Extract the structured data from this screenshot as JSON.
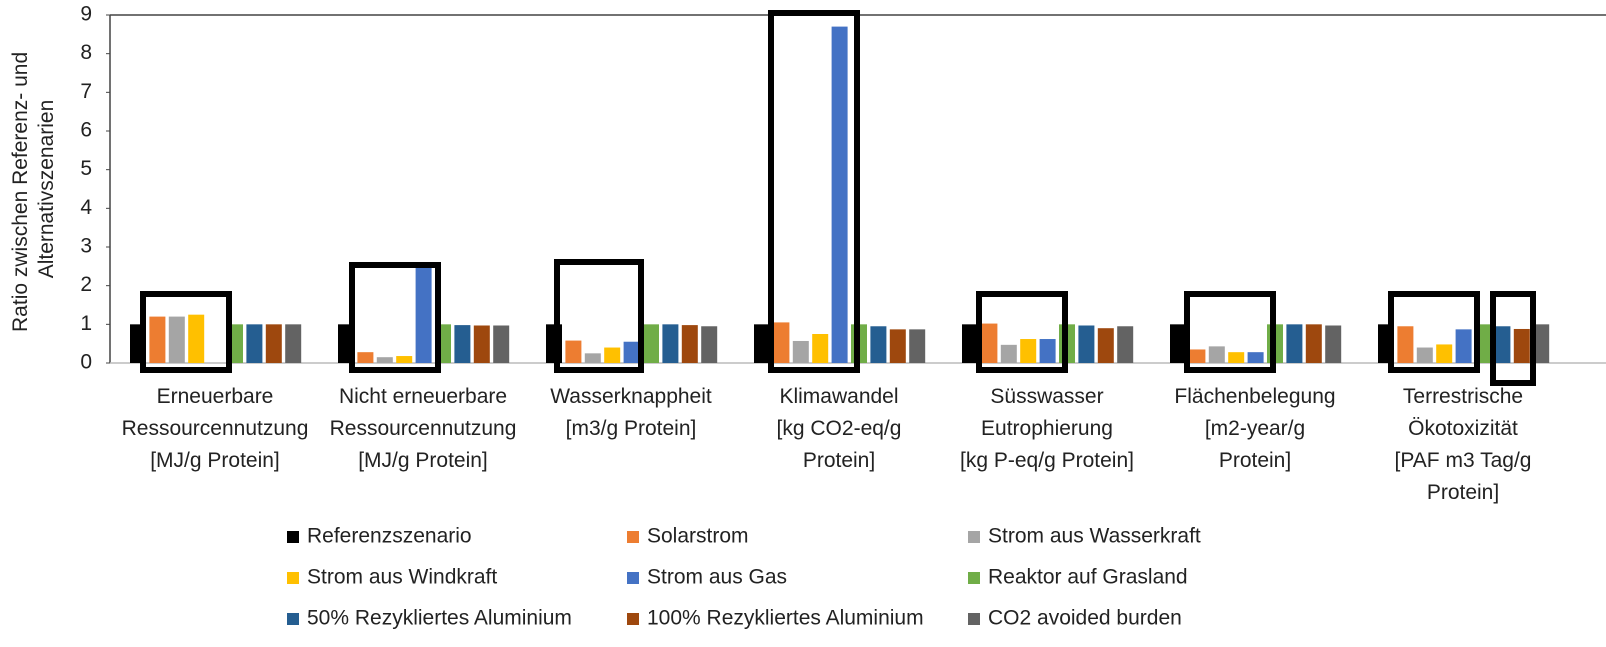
{
  "chart_data": {
    "type": "bar",
    "ylabel": [
      "Ratio zwischen Referenz- und",
      "Alternativszenarien"
    ],
    "categories": [
      [
        "Erneuerbare",
        "Ressourcennutzung",
        "[MJ/g Protein]"
      ],
      [
        "Nicht erneuerbare",
        "Ressourcennutzung",
        "[MJ/g Protein]"
      ],
      [
        "Wasserknappheit",
        "[m3/g Protein]"
      ],
      [
        "Klimawandel",
        "[kg CO2-eq/g",
        "Protein]"
      ],
      [
        "Süsswasser",
        "Eutrophierung",
        "[kg P-eq/g Protein]"
      ],
      [
        "Flächenbelegung",
        "[m2-year/g",
        "Protein]"
      ],
      [
        "Terrestrische",
        "Ökotoxizität",
        "[PAF m3 Tag/g",
        "Protein]"
      ]
    ],
    "series": [
      {
        "name": "Referenzszenario",
        "color": "#000000",
        "values": [
          1.0,
          1.0,
          1.0,
          1.0,
          1.0,
          1.0,
          1.0
        ]
      },
      {
        "name": "Solarstrom",
        "color": "#ed7d31",
        "values": [
          1.2,
          0.28,
          0.58,
          1.05,
          1.02,
          0.35,
          0.95
        ]
      },
      {
        "name": "Strom aus Wasserkraft",
        "color": "#a5a5a5",
        "values": [
          1.2,
          0.15,
          0.25,
          0.57,
          0.47,
          0.43,
          0.4
        ]
      },
      {
        "name": "Strom aus Windkraft",
        "color": "#ffc000",
        "values": [
          1.25,
          0.18,
          0.4,
          0.75,
          0.62,
          0.28,
          0.48
        ]
      },
      {
        "name": "Strom aus Gas",
        "color": "#4472c4",
        "values": [
          0,
          2.6,
          0.55,
          8.7,
          0.62,
          0.28,
          0.87
        ]
      },
      {
        "name": "Reaktor auf Grasland",
        "color": "#70ad47",
        "values": [
          1.0,
          1.0,
          1.0,
          1.0,
          1.0,
          1.0,
          1.0
        ]
      },
      {
        "name": "50% Rezykliertes Aluminium",
        "color": "#255e91",
        "values": [
          1.0,
          0.98,
          1.0,
          0.95,
          0.97,
          1.0,
          0.95
        ]
      },
      {
        "name": "100% Rezykliertes Aluminium",
        "color": "#9e480e",
        "values": [
          1.0,
          0.97,
          0.98,
          0.87,
          0.9,
          1.0,
          0.88
        ]
      },
      {
        "name": "CO2 avoided burden",
        "color": "#636363",
        "values": [
          1.0,
          0.97,
          0.95,
          0.87,
          0.95,
          0.97,
          1.0
        ]
      }
    ],
    "ylim": [
      0,
      9
    ],
    "yticks": [
      0,
      1,
      2,
      3,
      4,
      5,
      6,
      7,
      8,
      9
    ]
  }
}
